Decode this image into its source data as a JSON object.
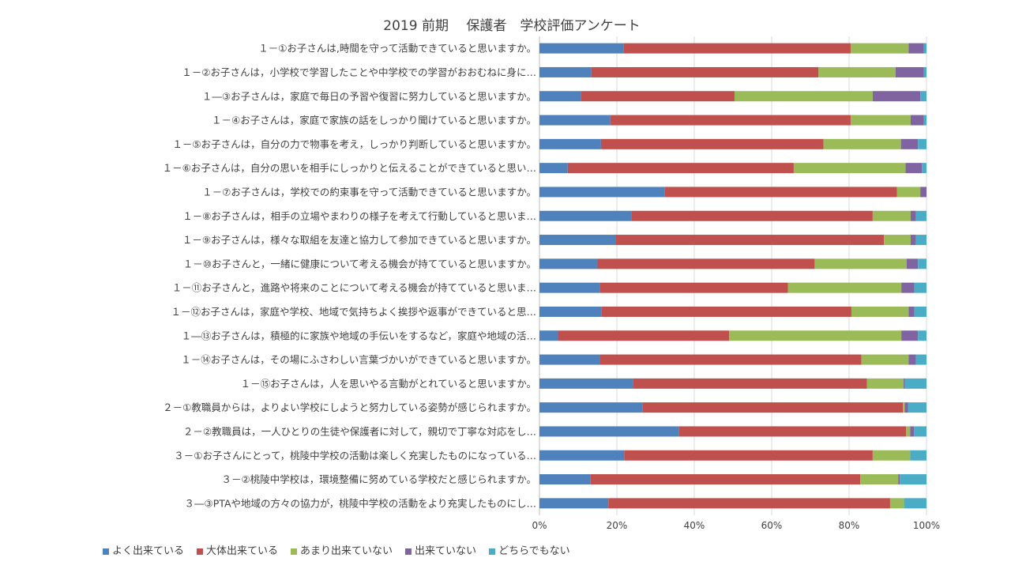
{
  "chart_data": {
    "type": "bar",
    "orientation": "horizontal",
    "stacked": "percent",
    "title": "2019 前期　 保護者　学校評価アンケート",
    "xlabel": "",
    "ylabel": "",
    "xlim": [
      0,
      100
    ],
    "x_ticks": [
      "0%",
      "20%",
      "40%",
      "60%",
      "80%",
      "100%"
    ],
    "grid": true,
    "legend_position": "bottom",
    "categories": [
      "１－①お子さんは,時間を守って活動できていると思いますか。",
      "１－②お子さんは，小学校で学習したことや中学校での学習がおおむねに身に…",
      "１―③お子さんは，家庭で毎日の予習や復習に努力していると思いますか。",
      "１－④お子さんは，家庭で家族の話をしっかり聞けていると思いますか。",
      "１－⑤お子さんは，自分の力で物事を考え，しっかり判断していると思いますか。",
      "１－⑥お子さんは，自分の思いを相手にしっかりと伝えることができていると思い…",
      "１－⑦お子さんは，学校での約束事を守って活動できていると思いますか。",
      "１－⑧お子さんは，相手の立場やまわりの様子を考えて行動していると思いま…",
      "１－⑨お子さんは，様々な取組を友達と協力して参加できていると思いますか。",
      "１－⑩お子さんと，一緒に健康について考える機会が持てていると思いますか。",
      "１－⑪お子さんと，進路や将来のことについて考える機会が持てていると思いま…",
      "１－⑫お子さんは，家庭や学校、地域で気持ちよく挨拶や返事ができていると思…",
      "１―⑬お子さんは，積極的に家族や地域の手伝いをするなど，家庭や地域の活…",
      "１－⑭お子さんは，その場にふさわしい言葉づかいができていると思いますか。",
      "１－⑮お子さんは，人を思いやる言動がとれていると思いますか。",
      "２－①教職員からは，よりよい学校にしようと努力している姿勢が感じられますか。",
      "２－②教職員は，一人ひとりの生徒や保護者に対して，親切で丁寧な対応をし…",
      "３－①お子さんにとって，桃陵中学校の活動は楽しく充実したものになっている…",
      "３－②桃陵中学校は，環境整備に努めている学校だと感じられますか。",
      "３―③PTAや地域の方々の協力が，桃陵中学校の活動をより充実したものにし…"
    ],
    "series": [
      {
        "name": "よく出来ている",
        "color": "#4f81bd",
        "values": [
          21.7,
          13.4,
          10.8,
          18.3,
          15.9,
          7.3,
          32.3,
          23.7,
          19.7,
          15.0,
          15.7,
          16.1,
          4.8,
          15.6,
          24.2,
          26.6,
          36.1,
          21.9,
          13.2,
          17.8
        ]
      },
      {
        "name": "大体出来ている",
        "color": "#c0504d",
        "values": [
          58.7,
          58.7,
          39.6,
          62.1,
          57.5,
          58.4,
          60.1,
          62.4,
          69.3,
          56.1,
          48.5,
          64.5,
          44.2,
          67.6,
          60.4,
          67.3,
          58.6,
          64.2,
          69.7,
          72.8
        ]
      },
      {
        "name": "あまり出来ていない",
        "color": "#9bbb59",
        "values": [
          15.0,
          19.9,
          35.7,
          15.5,
          20.0,
          28.9,
          6.0,
          9.8,
          6.9,
          23.8,
          29.3,
          14.8,
          44.5,
          12.2,
          9.5,
          0.5,
          1.1,
          9.7,
          9.8,
          3.6
        ]
      },
      {
        "name": "出来ていない",
        "color": "#8064a2",
        "values": [
          3.9,
          7.3,
          12.3,
          3.4,
          4.4,
          4.2,
          1.6,
          1.4,
          1.4,
          2.9,
          3.4,
          1.5,
          4.3,
          1.9,
          0.3,
          0.8,
          1.0,
          0.0,
          0.4,
          0.0
        ]
      },
      {
        "name": "どちらでもない",
        "color": "#4bacc6",
        "values": [
          0.7,
          0.7,
          1.6,
          0.7,
          2.2,
          1.2,
          0.0,
          2.7,
          2.7,
          2.2,
          3.1,
          3.1,
          2.2,
          2.7,
          5.6,
          4.8,
          3.2,
          4.2,
          6.9,
          5.8
        ]
      }
    ]
  }
}
